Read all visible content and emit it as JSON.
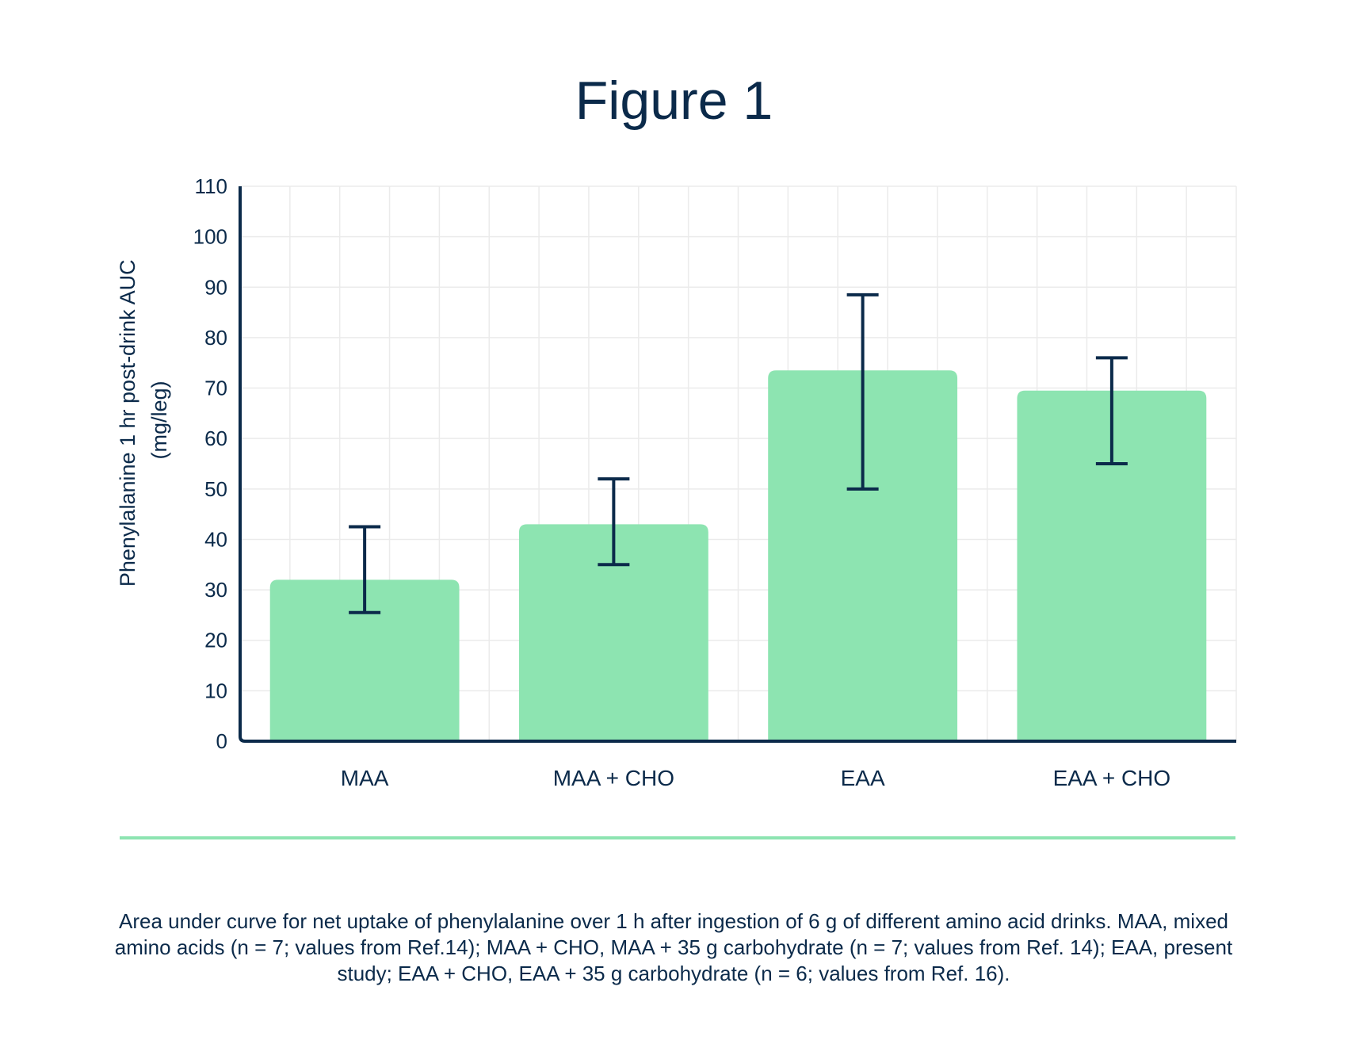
{
  "chart_data": {
    "type": "bar",
    "title": "Figure 1",
    "ylabel_line1": "Phenylalanine 1 hr post-drink AUC",
    "ylabel_line2": "(mg/leg)",
    "xlabel": "",
    "ylim": [
      0,
      110
    ],
    "yticks": [
      0,
      10,
      20,
      30,
      40,
      50,
      60,
      70,
      80,
      90,
      100,
      110
    ],
    "grid": true,
    "categories": [
      "MAA",
      "MAA + CHO",
      "EAA",
      "EAA + CHO"
    ],
    "values": [
      32,
      43,
      73.5,
      69.5
    ],
    "error_low": [
      25.5,
      35,
      50,
      55
    ],
    "error_high": [
      42.5,
      52,
      88.5,
      76
    ]
  },
  "caption": "Area under curve for net uptake of phenylalanine over 1 h after ingestion of 6 g of different amino acid drinks. MAA, mixed amino acids (n = 7; values from Ref.14); MAA + CHO, MAA + 35 g carbohydrate (n = 7; values from Ref. 14); EAA, present study; EAA + CHO, EAA + 35 g carbohydrate (n = 6; values from Ref. 16).",
  "colors": {
    "bar": "#8de4b1",
    "axis": "#0b2a4a",
    "grid": "#ebebeb",
    "divider": "#8de4b1",
    "text": "#0b2a4a"
  }
}
